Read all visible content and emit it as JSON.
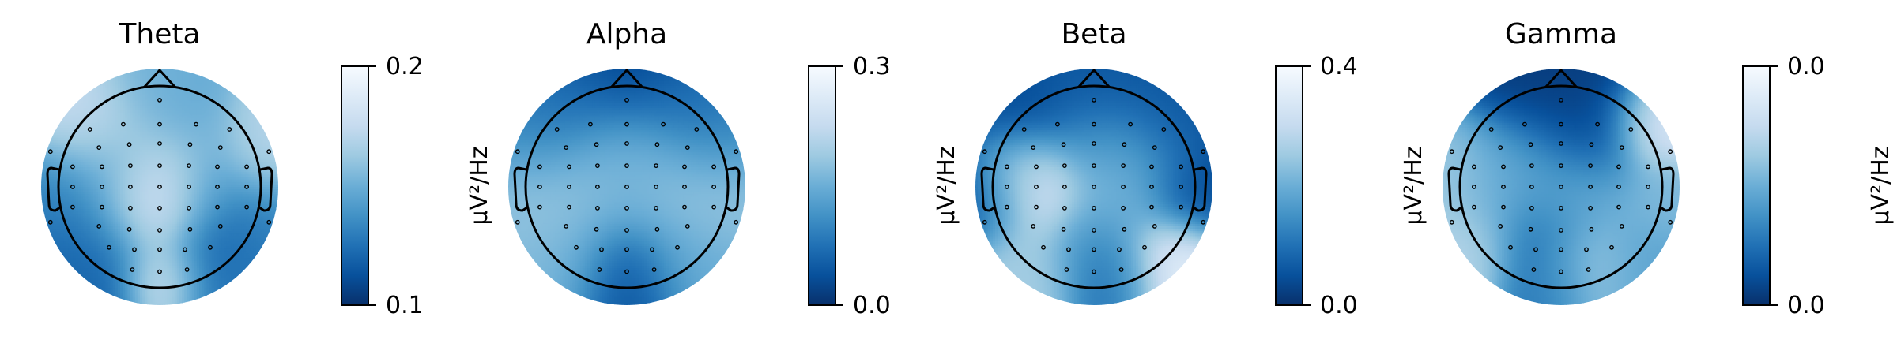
{
  "chart_data": [
    {
      "type": "heatmap",
      "title": "Theta",
      "colorbar": {
        "min_label": "0.1",
        "max_label": "0.2",
        "label": "µV²/Hz"
      },
      "colormap": [
        "#08306b",
        "#08519c",
        "#2171b5",
        "#4292c6",
        "#6baed6",
        "#9ecae1",
        "#c6dbef",
        "#deebf7",
        "#f7fbff"
      ],
      "blobs": [
        {
          "x": 0.02,
          "y": 0.02,
          "v": 0.95,
          "r": 0.33
        },
        {
          "x": -0.2,
          "y": 0.2,
          "v": 0.85,
          "r": 0.28
        },
        {
          "x": 0.15,
          "y": 0.05,
          "v": 0.8,
          "r": 0.3
        },
        {
          "x": -0.6,
          "y": -0.5,
          "v": 0.75,
          "r": 0.35
        },
        {
          "x": 0.3,
          "y": -0.38,
          "v": 0.45,
          "r": 0.3
        },
        {
          "x": -0.38,
          "y": -0.1,
          "v": 0.35,
          "r": 0.3
        },
        {
          "x": 0.55,
          "y": 0.5,
          "v": 0.12,
          "r": 0.35
        },
        {
          "x": 0.45,
          "y": 0.02,
          "v": 0.3,
          "r": 0.25
        },
        {
          "x": -0.55,
          "y": 0.45,
          "v": 0.25,
          "r": 0.3
        },
        {
          "x": 0.0,
          "y": -0.85,
          "v": 0.5,
          "r": 0.3
        },
        {
          "x": 0.05,
          "y": 0.85,
          "v": 0.85,
          "r": 0.25
        },
        {
          "x": -0.95,
          "y": 0.1,
          "v": 0.3,
          "r": 0.3
        },
        {
          "x": 0.95,
          "y": -0.3,
          "v": 0.7,
          "r": 0.3
        },
        {
          "x": 0.95,
          "y": 0.35,
          "v": 0.35,
          "r": 0.3
        },
        {
          "x": -0.7,
          "y": 0.8,
          "v": 0.2,
          "r": 0.35
        },
        {
          "x": 0.7,
          "y": 0.8,
          "v": 0.3,
          "r": 0.35
        }
      ]
    },
    {
      "type": "heatmap",
      "title": "Alpha",
      "colorbar": {
        "min_label": "0.0",
        "max_label": "0.3",
        "label": "µV²/Hz"
      },
      "colormap": [
        "#08306b",
        "#08519c",
        "#2171b5",
        "#4292c6",
        "#6baed6",
        "#9ecae1",
        "#c6dbef",
        "#deebf7",
        "#f7fbff"
      ],
      "blobs": [
        {
          "x": 0.0,
          "y": -0.8,
          "v": 0.08,
          "r": 0.42
        },
        {
          "x": -0.5,
          "y": -0.72,
          "v": 0.25,
          "r": 0.3
        },
        {
          "x": 0.5,
          "y": -0.72,
          "v": 0.25,
          "r": 0.3
        },
        {
          "x": -0.5,
          "y": 0.05,
          "v": 0.6,
          "r": 0.35
        },
        {
          "x": 0.5,
          "y": 0.05,
          "v": 0.6,
          "r": 0.35
        },
        {
          "x": 0.0,
          "y": 0.0,
          "v": 0.48,
          "r": 0.35
        },
        {
          "x": -0.22,
          "y": -0.3,
          "v": 0.62,
          "r": 0.3
        },
        {
          "x": 0.22,
          "y": -0.3,
          "v": 0.62,
          "r": 0.3
        },
        {
          "x": 0.0,
          "y": 0.8,
          "v": 0.12,
          "r": 0.32
        },
        {
          "x": -0.6,
          "y": 0.65,
          "v": 0.55,
          "r": 0.32
        },
        {
          "x": 0.6,
          "y": 0.65,
          "v": 0.5,
          "r": 0.32
        },
        {
          "x": -0.95,
          "y": 0.0,
          "v": 0.6,
          "r": 0.3
        },
        {
          "x": 0.95,
          "y": 0.0,
          "v": 0.6,
          "r": 0.3
        },
        {
          "x": -0.9,
          "y": -0.45,
          "v": 0.3,
          "r": 0.3
        },
        {
          "x": 0.9,
          "y": -0.45,
          "v": 0.3,
          "r": 0.3
        }
      ]
    },
    {
      "type": "heatmap",
      "title": "Beta",
      "colorbar": {
        "min_label": "0.0",
        "max_label": "0.4",
        "label": "µV²/Hz"
      },
      "colormap": [
        "#08306b",
        "#08519c",
        "#2171b5",
        "#4292c6",
        "#6baed6",
        "#9ecae1",
        "#c6dbef",
        "#deebf7",
        "#f7fbff"
      ],
      "blobs": [
        {
          "x": -0.55,
          "y": 0.05,
          "v": 0.95,
          "r": 0.3
        },
        {
          "x": -0.7,
          "y": -0.15,
          "v": 0.8,
          "r": 0.25
        },
        {
          "x": 0.15,
          "y": 0.15,
          "v": 0.55,
          "r": 0.3
        },
        {
          "x": 0.45,
          "y": -0.2,
          "v": 0.5,
          "r": 0.3
        },
        {
          "x": 0.0,
          "y": -0.35,
          "v": 0.45,
          "r": 0.3
        },
        {
          "x": 0.0,
          "y": -0.85,
          "v": 0.15,
          "r": 0.35
        },
        {
          "x": -0.7,
          "y": -0.6,
          "v": 0.1,
          "r": 0.3
        },
        {
          "x": 0.7,
          "y": -0.6,
          "v": 0.15,
          "r": 0.3
        },
        {
          "x": -0.98,
          "y": 0.05,
          "v": 0.1,
          "r": 0.3
        },
        {
          "x": 0.95,
          "y": 0.0,
          "v": 0.1,
          "r": 0.3
        },
        {
          "x": 0.72,
          "y": 0.75,
          "v": 0.9,
          "r": 0.3
        },
        {
          "x": -0.6,
          "y": 0.75,
          "v": 0.65,
          "r": 0.3
        },
        {
          "x": 0.0,
          "y": 0.55,
          "v": 0.3,
          "r": 0.3
        },
        {
          "x": 0.2,
          "y": 0.9,
          "v": 0.25,
          "r": 0.25
        }
      ]
    },
    {
      "type": "heatmap",
      "title": "Gamma",
      "colorbar": {
        "min_label": "0.0",
        "max_label": "0.0",
        "label": "µV²/Hz"
      },
      "colormap": [
        "#08306b",
        "#08519c",
        "#2171b5",
        "#4292c6",
        "#6baed6",
        "#9ecae1",
        "#c6dbef",
        "#deebf7",
        "#f7fbff"
      ],
      "blobs": [
        {
          "x": 0.0,
          "y": -0.65,
          "v": 0.05,
          "r": 0.45
        },
        {
          "x": 0.3,
          "y": -0.5,
          "v": 0.1,
          "r": 0.3
        },
        {
          "x": 0.85,
          "y": -0.55,
          "v": 0.9,
          "r": 0.25
        },
        {
          "x": 0.95,
          "y": 0.1,
          "v": 0.55,
          "r": 0.25
        },
        {
          "x": -0.3,
          "y": -0.15,
          "v": 0.55,
          "r": 0.3
        },
        {
          "x": 0.3,
          "y": 0.0,
          "v": 0.55,
          "r": 0.3
        },
        {
          "x": 0.0,
          "y": 0.15,
          "v": 0.45,
          "r": 0.3
        },
        {
          "x": -0.65,
          "y": 0.0,
          "v": 0.45,
          "r": 0.3
        },
        {
          "x": -0.95,
          "y": -0.1,
          "v": 0.65,
          "r": 0.3
        },
        {
          "x": -0.85,
          "y": 0.55,
          "v": 0.7,
          "r": 0.3
        },
        {
          "x": 0.2,
          "y": 0.75,
          "v": 0.7,
          "r": 0.3
        },
        {
          "x": -0.1,
          "y": 0.95,
          "v": 0.25,
          "r": 0.25
        },
        {
          "x": 0.7,
          "y": 0.75,
          "v": 0.45,
          "r": 0.3
        },
        {
          "x": -0.2,
          "y": 0.5,
          "v": 0.15,
          "r": 0.3
        }
      ]
    }
  ]
}
